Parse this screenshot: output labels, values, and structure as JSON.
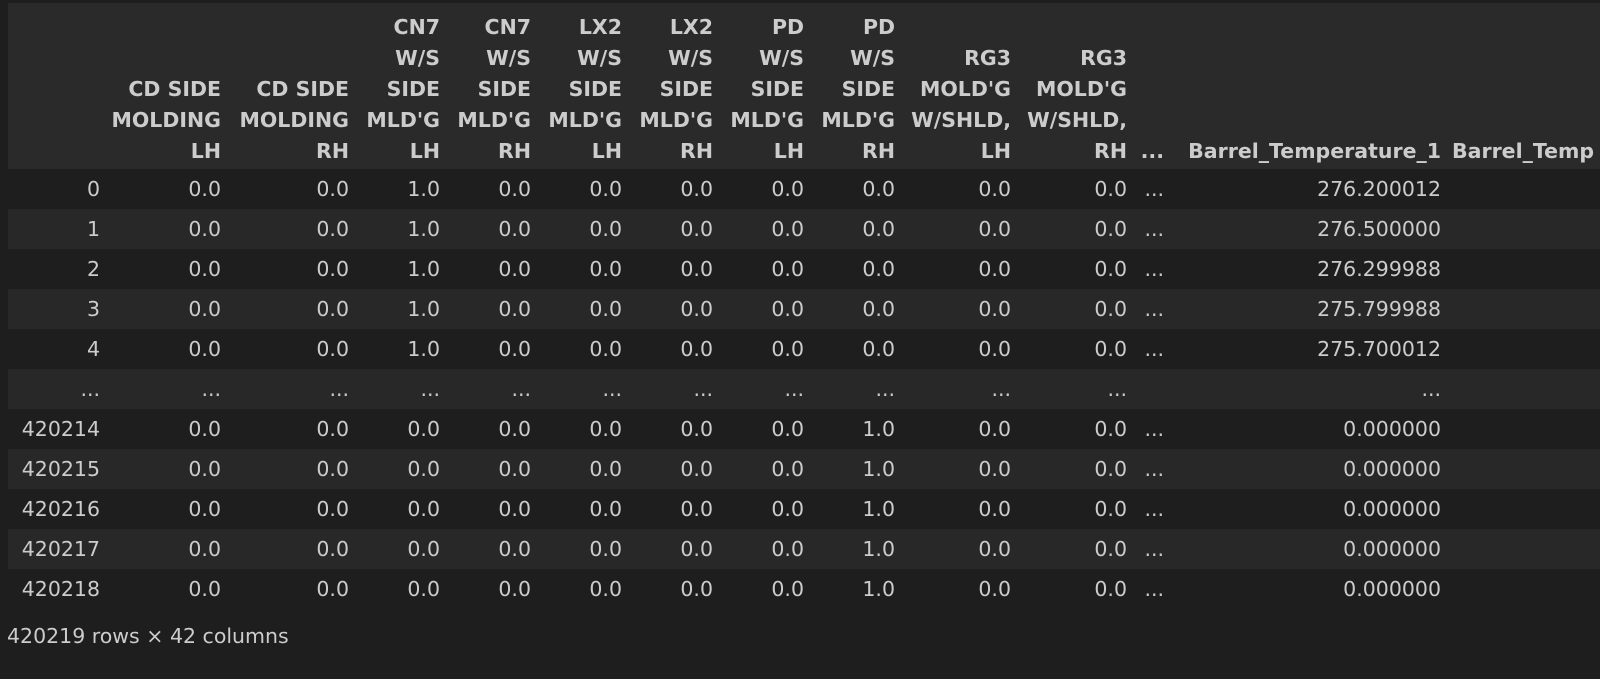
{
  "table": {
    "columns": [
      {
        "lines": [
          ""
        ]
      },
      {
        "lines": [
          "CD SIDE",
          "MOLDING",
          "LH"
        ]
      },
      {
        "lines": [
          "CD SIDE",
          "MOLDING",
          "RH"
        ]
      },
      {
        "lines": [
          "CN7",
          "W/S",
          "SIDE",
          "MLD'G",
          "LH"
        ]
      },
      {
        "lines": [
          "CN7",
          "W/S",
          "SIDE",
          "MLD'G",
          "RH"
        ]
      },
      {
        "lines": [
          "LX2",
          "W/S",
          "SIDE",
          "MLD'G",
          "LH"
        ]
      },
      {
        "lines": [
          "LX2",
          "W/S",
          "SIDE",
          "MLD'G",
          "RH"
        ]
      },
      {
        "lines": [
          "PD",
          "W/S",
          "SIDE",
          "MLD'G",
          "LH"
        ]
      },
      {
        "lines": [
          "PD",
          "W/S",
          "SIDE",
          "MLD'G",
          "RH"
        ]
      },
      {
        "lines": [
          "RG3",
          "MOLD'G",
          "W/SHLD,",
          "LH"
        ]
      },
      {
        "lines": [
          "RG3",
          "MOLD'G",
          "W/SHLD,",
          "RH"
        ]
      },
      {
        "lines": [
          "..."
        ]
      },
      {
        "lines": [
          "Barrel_Temperature_1"
        ]
      },
      {
        "lines": [
          "Barrel_Temp"
        ]
      }
    ],
    "rows": [
      {
        "index": "0",
        "cells": [
          "0.0",
          "0.0",
          "1.0",
          "0.0",
          "0.0",
          "0.0",
          "0.0",
          "0.0",
          "0.0",
          "0.0",
          "...",
          "276.200012",
          ""
        ]
      },
      {
        "index": "1",
        "cells": [
          "0.0",
          "0.0",
          "1.0",
          "0.0",
          "0.0",
          "0.0",
          "0.0",
          "0.0",
          "0.0",
          "0.0",
          "...",
          "276.500000",
          ""
        ]
      },
      {
        "index": "2",
        "cells": [
          "0.0",
          "0.0",
          "1.0",
          "0.0",
          "0.0",
          "0.0",
          "0.0",
          "0.0",
          "0.0",
          "0.0",
          "...",
          "276.299988",
          ""
        ]
      },
      {
        "index": "3",
        "cells": [
          "0.0",
          "0.0",
          "1.0",
          "0.0",
          "0.0",
          "0.0",
          "0.0",
          "0.0",
          "0.0",
          "0.0",
          "...",
          "275.799988",
          ""
        ]
      },
      {
        "index": "4",
        "cells": [
          "0.0",
          "0.0",
          "1.0",
          "0.0",
          "0.0",
          "0.0",
          "0.0",
          "0.0",
          "0.0",
          "0.0",
          "...",
          "275.700012",
          ""
        ]
      },
      {
        "index": "...",
        "cells": [
          "...",
          "...",
          "...",
          "...",
          "...",
          "...",
          "...",
          "...",
          "...",
          "...",
          "",
          "...",
          ""
        ]
      },
      {
        "index": "420214",
        "cells": [
          "0.0",
          "0.0",
          "0.0",
          "0.0",
          "0.0",
          "0.0",
          "0.0",
          "1.0",
          "0.0",
          "0.0",
          "...",
          "0.000000",
          ""
        ]
      },
      {
        "index": "420215",
        "cells": [
          "0.0",
          "0.0",
          "0.0",
          "0.0",
          "0.0",
          "0.0",
          "0.0",
          "1.0",
          "0.0",
          "0.0",
          "...",
          "0.000000",
          ""
        ]
      },
      {
        "index": "420216",
        "cells": [
          "0.0",
          "0.0",
          "0.0",
          "0.0",
          "0.0",
          "0.0",
          "0.0",
          "1.0",
          "0.0",
          "0.0",
          "...",
          "0.000000",
          ""
        ]
      },
      {
        "index": "420217",
        "cells": [
          "0.0",
          "0.0",
          "0.0",
          "0.0",
          "0.0",
          "0.0",
          "0.0",
          "1.0",
          "0.0",
          "0.0",
          "...",
          "0.000000",
          ""
        ]
      },
      {
        "index": "420218",
        "cells": [
          "0.0",
          "0.0",
          "0.0",
          "0.0",
          "0.0",
          "0.0",
          "0.0",
          "1.0",
          "0.0",
          "0.0",
          "...",
          "0.000000",
          ""
        ]
      }
    ]
  },
  "footer": {
    "shape_text": "420219 rows × 42 columns"
  },
  "colors": {
    "background": "#1e1e1e",
    "header_bg": "#2a2a2a",
    "stripe_bg": "#282828",
    "text": "#cccccc"
  }
}
